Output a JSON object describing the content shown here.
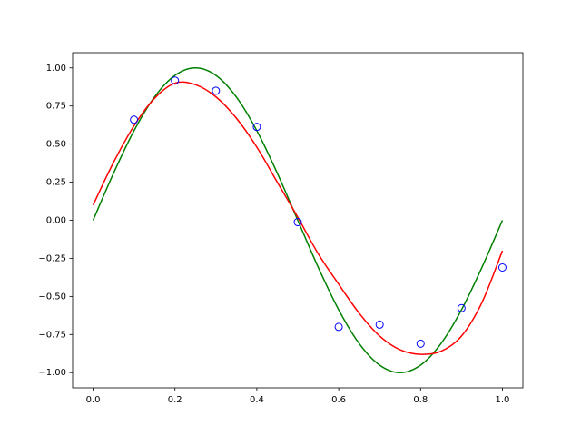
{
  "chart_data": {
    "type": "line",
    "x": [
      0,
      0.05,
      0.1,
      0.15,
      0.2,
      0.25,
      0.3,
      0.35,
      0.4,
      0.45,
      0.5,
      0.55,
      0.6,
      0.65,
      0.7,
      0.75,
      0.8,
      0.85,
      0.9,
      0.95,
      1.0
    ],
    "series": [
      {
        "type": "scatter",
        "color": "#0000ff",
        "marker": "hollow-circle",
        "x": [
          0.1,
          0.2,
          0.3,
          0.4,
          0.5,
          0.6,
          0.7,
          0.8,
          0.9,
          1.0
        ],
        "values": [
          0.66,
          0.917,
          0.85,
          0.613,
          -0.012,
          -0.7,
          -0.685,
          -0.81,
          -0.577,
          -0.31
        ]
      },
      {
        "type": "line",
        "color": "#008000",
        "values": [
          0,
          0.309,
          0.588,
          0.809,
          0.951,
          1,
          0.951,
          0.809,
          0.588,
          0.309,
          0,
          -0.309,
          -0.588,
          -0.809,
          -0.951,
          -1,
          -0.951,
          -0.809,
          -0.588,
          -0.309,
          0
        ]
      },
      {
        "type": "line",
        "color": "#ff0000",
        "values": [
          0.1,
          0.38,
          0.62,
          0.8,
          0.9,
          0.89,
          0.81,
          0.67,
          0.48,
          0.25,
          0.02,
          -0.22,
          -0.42,
          -0.61,
          -0.76,
          -0.85,
          -0.88,
          -0.86,
          -0.76,
          -0.54,
          -0.2
        ]
      }
    ],
    "xlim": [
      -0.05,
      1.05
    ],
    "ylim": [
      -1.1,
      1.1
    ],
    "xticks": [
      {
        "value": 0,
        "label": "0.0"
      },
      0.2,
      0.4,
      0.6,
      0.8,
      {
        "value": 1,
        "label": "1.0"
      }
    ],
    "yticks": [
      {
        "value": -1,
        "label": "−1.00"
      },
      {
        "value": -0.75,
        "label": "−0.75"
      },
      {
        "value": -0.5,
        "label": "−0.50"
      },
      {
        "value": -0.25,
        "label": "−0.25"
      },
      {
        "value": 0,
        "label": "0.00"
      },
      {
        "value": 0.25,
        "label": "0.25"
      },
      {
        "value": 0.5,
        "label": "0.50"
      },
      {
        "value": 0.75,
        "label": "0.75"
      },
      {
        "value": 1,
        "label": "1.00"
      }
    ],
    "grid": false
  }
}
